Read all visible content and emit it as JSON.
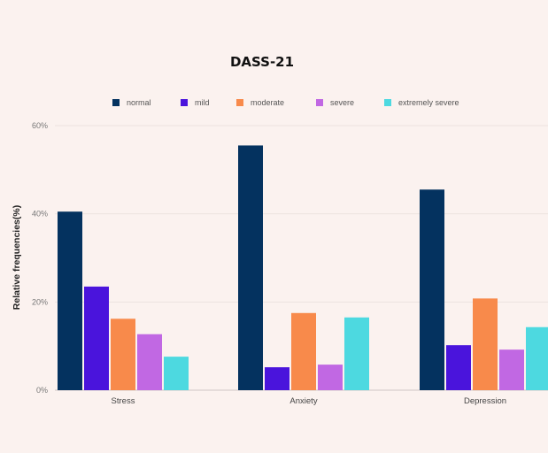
{
  "chart_data": {
    "type": "bar",
    "title": "DASS-21",
    "ylabel": "Relative frequencies(%)",
    "xlabel": "",
    "categories": [
      "Stress",
      "Anxiety",
      "Depression"
    ],
    "ylim": [
      0,
      60
    ],
    "yticks": [
      "0%",
      "20%",
      "40%",
      "60%"
    ],
    "ytick_values": [
      0,
      20,
      40,
      60
    ],
    "grid": true,
    "legend_position": "top",
    "series": [
      {
        "name": "normal",
        "color": "#04325f",
        "values": [
          40.5,
          55.5,
          45.5
        ]
      },
      {
        "name": "mild",
        "color": "#4a14dc",
        "values": [
          23.5,
          5.2,
          10.2
        ]
      },
      {
        "name": "moderate",
        "color": "#f88a4b",
        "values": [
          16.2,
          17.5,
          20.8
        ]
      },
      {
        "name": "severe",
        "color": "#c168e3",
        "values": [
          12.7,
          5.8,
          9.2
        ]
      },
      {
        "name": "extremely severe",
        "color": "#4dd9e0",
        "values": [
          7.6,
          16.5,
          14.3
        ]
      }
    ]
  }
}
